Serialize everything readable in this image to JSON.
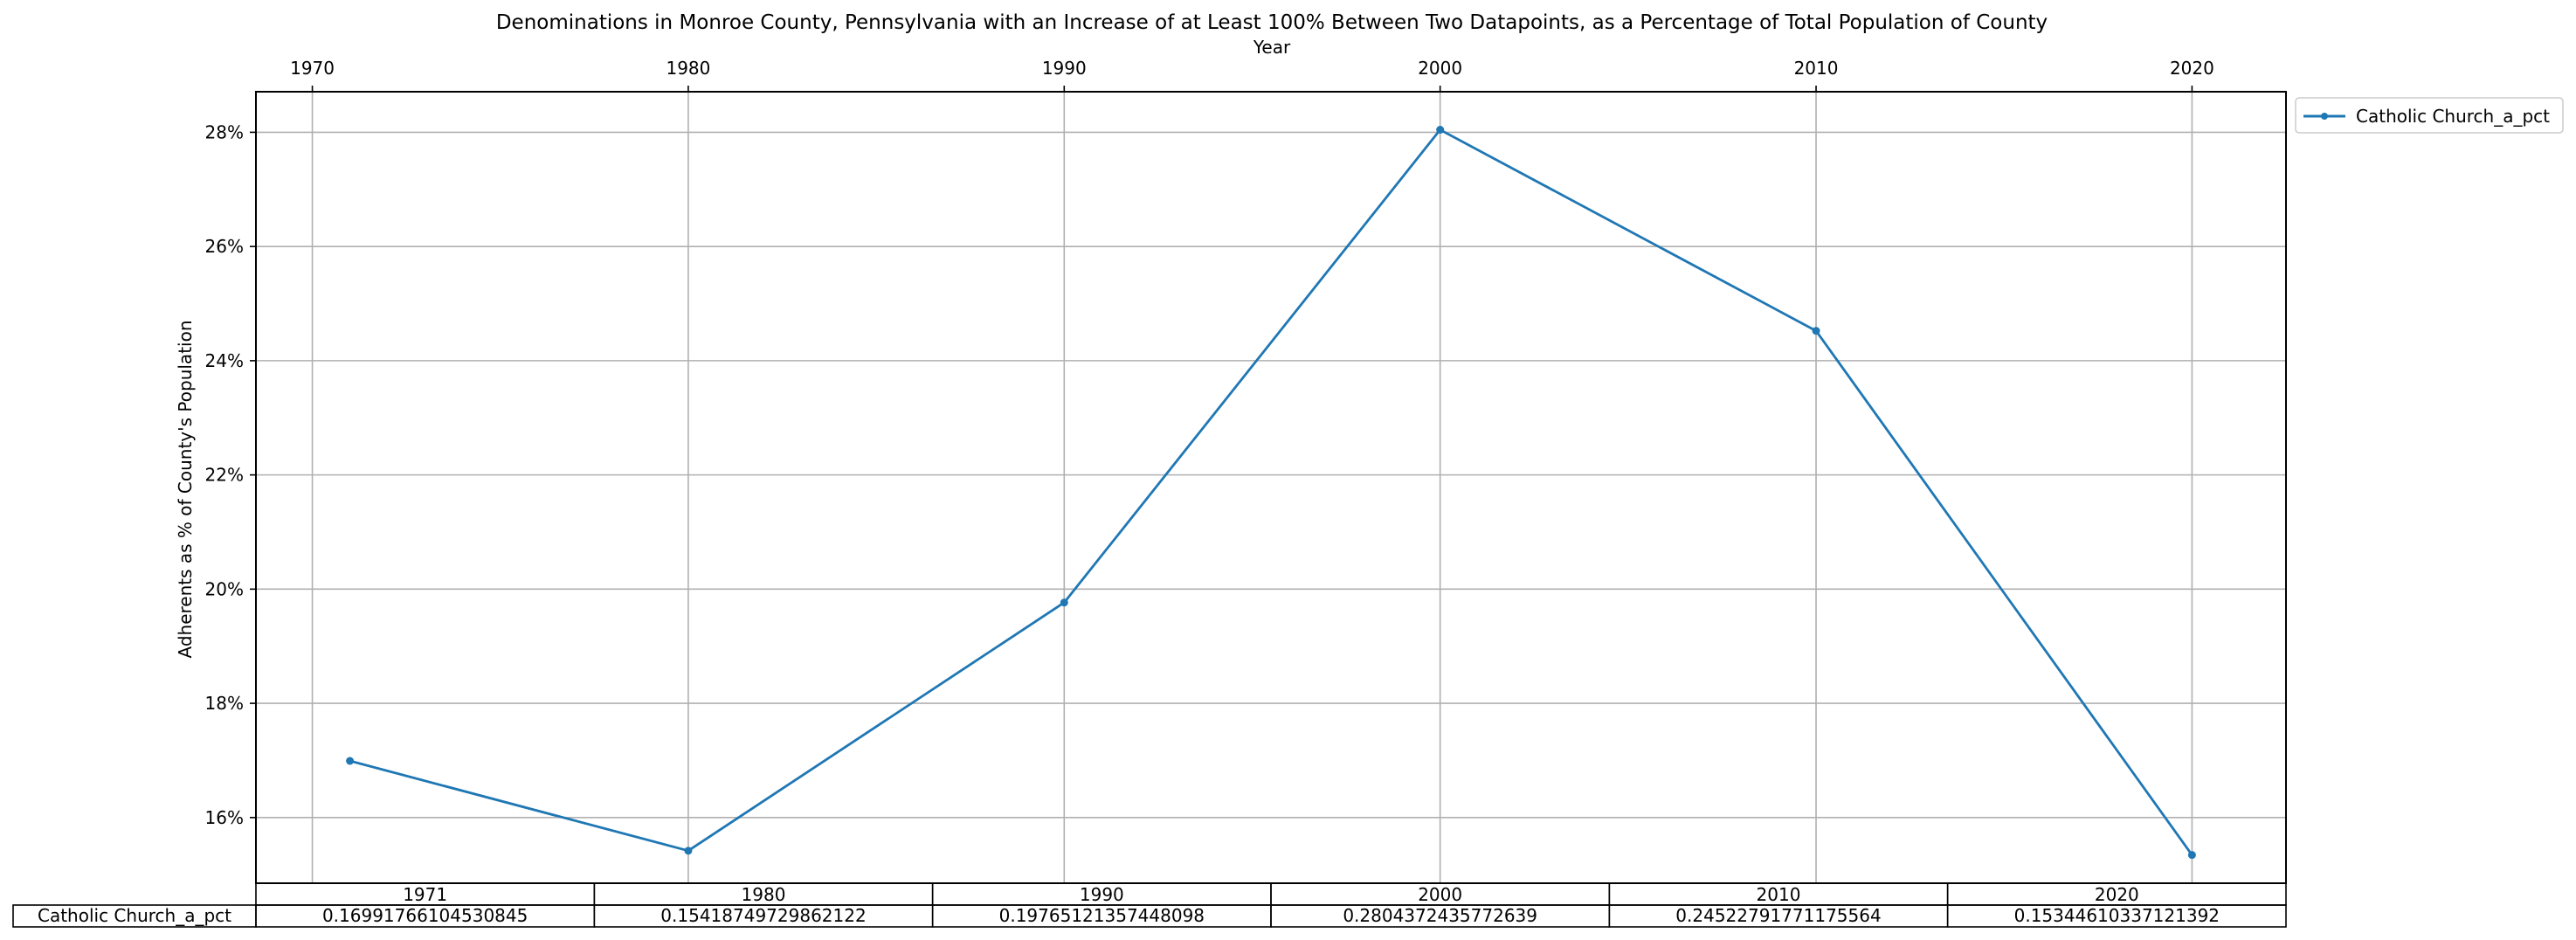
{
  "chart_data": {
    "type": "line",
    "title": "Denominations in Monroe County, Pennsylvania with an Increase of at Least 100% Between Two Datapoints, as a Percentage of Total Population of County",
    "xlabel": "Year",
    "ylabel": "Adherents as % of County's Population",
    "x_ticks": [
      "1970",
      "1980",
      "1990",
      "2000",
      "2010",
      "2020"
    ],
    "y_ticks": [
      "16%",
      "18%",
      "20%",
      "22%",
      "24%",
      "26%",
      "28%"
    ],
    "xlim": [
      1968.5,
      2022.5
    ],
    "ylim": [
      0.1485,
      0.2871
    ],
    "grid": true,
    "legend_position": "outside top-right",
    "series": [
      {
        "name": "Catholic Church_a_pct",
        "color": "#1f77b4",
        "marker": "point",
        "x": [
          1971,
          1980,
          1990,
          2000,
          2010,
          2020
        ],
        "values": [
          0.16991766104530845,
          0.15418749729862122,
          0.19765121357448098,
          0.2804372435772639,
          0.24522791771175564,
          0.15344610337121392
        ]
      }
    ],
    "table": {
      "columns": [
        "1971",
        "1980",
        "1990",
        "2000",
        "2010",
        "2020"
      ],
      "row_label": "Catholic Church_a_pct",
      "cells": [
        "0.16991766104530845",
        "0.15418749729862122",
        "0.19765121357448098",
        "0.2804372435772639",
        "0.24522791771175564",
        "0.15344610337121392"
      ]
    }
  }
}
